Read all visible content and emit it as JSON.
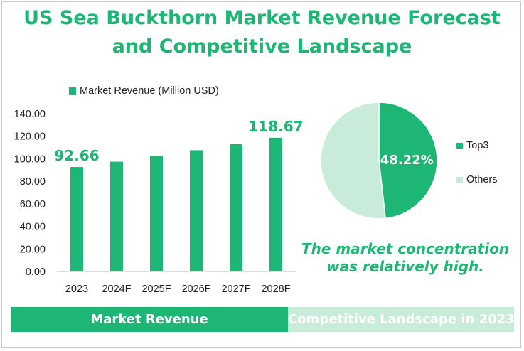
{
  "title": {
    "line1": "US Sea Buckthorn Market Revenue Forecast",
    "line2": "and Competitive Landscape"
  },
  "colors": {
    "accent": "#1db675",
    "light": "#c8ecd9"
  },
  "chart_data": [
    {
      "type": "bar",
      "title": "Market Revenue",
      "legend": "Market Revenue (Million USD)",
      "categories": [
        "2023",
        "2024F",
        "2025F",
        "2026F",
        "2027F",
        "2028F"
      ],
      "values": [
        92.66,
        97.4,
        102.3,
        107.6,
        113.0,
        118.67
      ],
      "data_labels": {
        "2023": "92.66",
        "2028F": "118.67"
      },
      "yticks": [
        "0.00",
        "20.00",
        "40.00",
        "60.00",
        "80.00",
        "100.00",
        "120.00",
        "140.00"
      ],
      "ylim": [
        0,
        140
      ],
      "xlabel": "",
      "ylabel": ""
    },
    {
      "type": "pie",
      "title": "Competitive Landscape in 2023",
      "labels": [
        "Top3",
        "Others"
      ],
      "values": [
        48.22,
        51.78
      ],
      "data_labels": [
        "48.22%",
        ""
      ],
      "legend_position": "right"
    }
  ],
  "note": {
    "line1": "The market concentration",
    "line2": "was relatively high."
  },
  "footer": {
    "left": "Market Revenue",
    "right": "Competitive Landscape in 2023"
  }
}
